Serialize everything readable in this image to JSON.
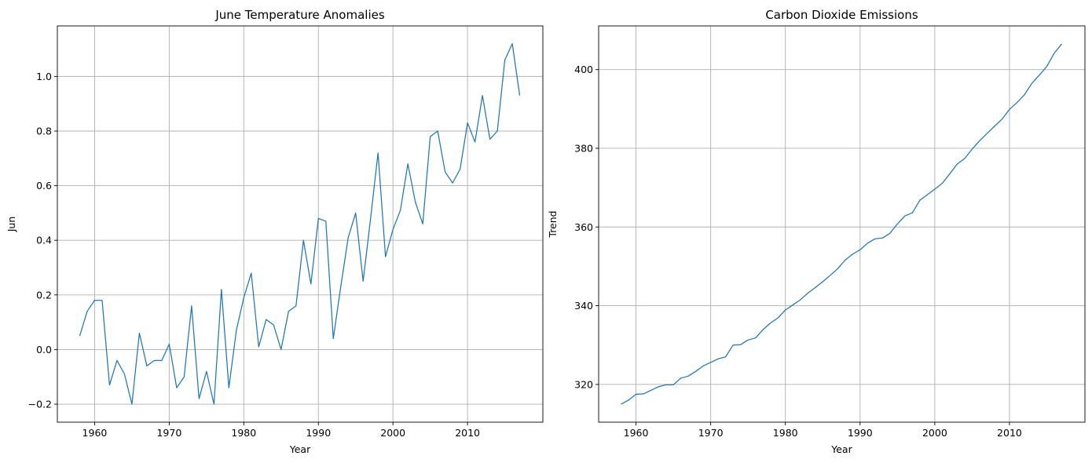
{
  "colors": {
    "series": "#1f77b4"
  },
  "chart_data": [
    {
      "type": "line",
      "title": "June Temperature Anomalies",
      "xlabel": "Year",
      "ylabel": "Jun",
      "xlim": [
        1955,
        2020.1
      ],
      "ylim": [
        -0.266,
        1.185
      ],
      "xticks": [
        1960,
        1970,
        1980,
        1990,
        2000,
        2010
      ],
      "xtick_labels": [
        "1960",
        "1970",
        "1980",
        "1990",
        "2000",
        "2010"
      ],
      "yticks": [
        -0.2,
        0.0,
        0.2,
        0.4,
        0.6,
        0.8,
        1.0
      ],
      "ytick_labels": [
        "−0.2",
        "0.0",
        "0.2",
        "0.4",
        "0.6",
        "0.8",
        "1.0"
      ],
      "grid": true,
      "x": [
        1958,
        1959,
        1960,
        1961,
        1962,
        1963,
        1964,
        1965,
        1966,
        1967,
        1968,
        1969,
        1970,
        1971,
        1972,
        1973,
        1974,
        1975,
        1976,
        1977,
        1978,
        1979,
        1980,
        1981,
        1982,
        1983,
        1984,
        1985,
        1986,
        1987,
        1988,
        1989,
        1990,
        1991,
        1992,
        1993,
        1994,
        1995,
        1996,
        1997,
        1998,
        1999,
        2000,
        2001,
        2002,
        2003,
        2004,
        2005,
        2006,
        2007,
        2008,
        2009,
        2010,
        2011,
        2012,
        2013,
        2014,
        2015,
        2016,
        2017
      ],
      "y": [
        0.05,
        0.14,
        0.18,
        0.18,
        -0.13,
        -0.04,
        -0.09,
        -0.2,
        0.06,
        -0.06,
        -0.04,
        -0.04,
        0.02,
        -0.14,
        -0.1,
        0.16,
        -0.18,
        -0.08,
        -0.2,
        0.22,
        -0.14,
        0.07,
        0.19,
        0.28,
        0.01,
        0.11,
        0.09,
        0.0,
        0.14,
        0.16,
        0.4,
        0.24,
        0.48,
        0.47,
        0.04,
        0.23,
        0.41,
        0.5,
        0.25,
        0.48,
        0.72,
        0.34,
        0.44,
        0.51,
        0.68,
        0.54,
        0.46,
        0.78,
        0.8,
        0.65,
        0.61,
        0.66,
        0.83,
        0.76,
        0.93,
        0.77,
        0.8,
        1.06,
        1.12,
        0.93
      ]
    },
    {
      "type": "line",
      "title": "Carbon Dioxide Emissions",
      "xlabel": "Year",
      "ylabel": "Trend",
      "xlim": [
        1955,
        2020.1
      ],
      "ylim": [
        310.4,
        411.1
      ],
      "xticks": [
        1960,
        1970,
        1980,
        1990,
        2000,
        2010
      ],
      "xtick_labels": [
        "1960",
        "1970",
        "1980",
        "1990",
        "2000",
        "2010"
      ],
      "yticks": [
        320,
        340,
        360,
        380,
        400
      ],
      "ytick_labels": [
        "320",
        "340",
        "360",
        "380",
        "400"
      ],
      "grid": true,
      "x": [
        1958,
        1959,
        1960,
        1961,
        1962,
        1963,
        1964,
        1965,
        1966,
        1967,
        1968,
        1969,
        1970,
        1971,
        1972,
        1973,
        1974,
        1975,
        1976,
        1977,
        1978,
        1979,
        1980,
        1981,
        1982,
        1983,
        1984,
        1985,
        1986,
        1987,
        1988,
        1989,
        1990,
        1991,
        1992,
        1993,
        1994,
        1995,
        1996,
        1997,
        1998,
        1999,
        2000,
        2001,
        2002,
        2003,
        2004,
        2005,
        2006,
        2007,
        2008,
        2009,
        2010,
        2011,
        2012,
        2013,
        2014,
        2015,
        2016,
        2017
      ],
      "y": [
        315.0,
        316.0,
        317.5,
        317.6,
        318.5,
        319.4,
        319.9,
        319.9,
        321.6,
        322.1,
        323.3,
        324.7,
        325.6,
        326.5,
        327.0,
        330.0,
        330.1,
        331.3,
        331.8,
        333.9,
        335.6,
        336.9,
        338.9,
        340.2,
        341.5,
        343.2,
        344.6,
        346.1,
        347.7,
        349.4,
        351.6,
        353.1,
        354.2,
        355.9,
        357.0,
        357.2,
        358.4,
        360.8,
        362.8,
        363.6,
        366.8,
        368.2,
        369.6,
        371.1,
        373.5,
        376.0,
        377.4,
        379.8,
        381.9,
        383.8,
        385.6,
        387.4,
        389.9,
        391.6,
        393.6,
        396.5,
        398.6,
        400.8,
        404.2,
        406.5
      ]
    }
  ]
}
